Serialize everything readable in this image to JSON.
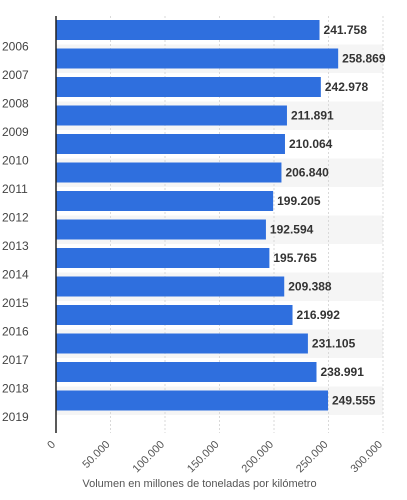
{
  "colors": {
    "bar": "#2f6fde",
    "band": "#f5f5f5",
    "axis": "#222222",
    "grid": "#d9d9d9"
  },
  "chart_data": {
    "type": "bar",
    "orientation": "horizontal",
    "categories": [
      "",
      "2006",
      "2007",
      "2008",
      "2009",
      "2010",
      "2011",
      "2012",
      "2013",
      "2014",
      "2015",
      "2016",
      "2017",
      "2018",
      "2019"
    ],
    "values": [
      241.758,
      258.869,
      242.978,
      211.891,
      210.064,
      206.84,
      199.205,
      192.594,
      195.765,
      209.388,
      216.992,
      231.105,
      238.991,
      249.555,
      null
    ],
    "value_labels": [
      "241.758",
      "258.869",
      "242.978",
      "211.891",
      "210.064",
      "206.840",
      "199.205",
      "192.594",
      "195.765",
      "209.388",
      "216.992",
      "231.105",
      "238.991",
      "249.555",
      ""
    ],
    "xlim": [
      0,
      300000
    ],
    "x_ticks": [
      0,
      50000,
      100000,
      150000,
      200000,
      250000,
      300000
    ],
    "x_tick_labels": [
      "0",
      "50.000",
      "100.000",
      "150.000",
      "200.000",
      "250.000",
      "300.000"
    ],
    "xlabel": "Volumen en millones de toneladas por kilómetro",
    "ylabel": "",
    "title": "",
    "grid": true
  }
}
